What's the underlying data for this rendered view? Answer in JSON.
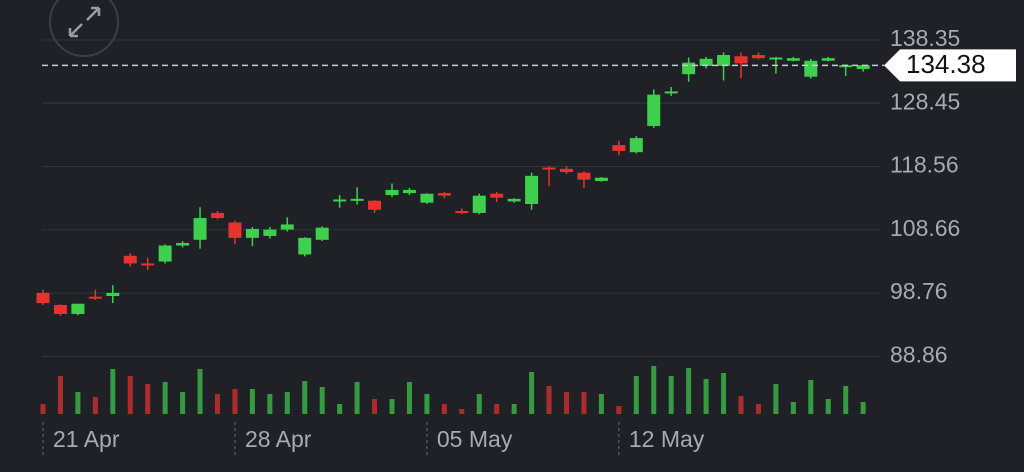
{
  "chart_data": {
    "type": "candlestick",
    "categories": [
      "21 Apr",
      null,
      null,
      null,
      null,
      null,
      null,
      null,
      null,
      null,
      null,
      "28 Apr",
      null,
      null,
      null,
      null,
      null,
      null,
      null,
      null,
      null,
      null,
      "05 May",
      null,
      null,
      null,
      null,
      null,
      null,
      null,
      null,
      null,
      null,
      "12 May",
      null,
      null,
      null,
      null,
      null,
      null,
      null,
      null,
      null,
      null,
      null,
      null,
      null,
      null
    ],
    "open": [
      98.8,
      96.9,
      95.5,
      98.2,
      98.3,
      104.6,
      103.4,
      103.7,
      106.2,
      107.1,
      111.3,
      109.8,
      107.4,
      107.7,
      108.7,
      104.8,
      107.1,
      113.3,
      113.4,
      113.2,
      114.1,
      114.4,
      112.9,
      114.4,
      111.6,
      111.3,
      114.3,
      113.1,
      112.7,
      118.4,
      118.2,
      117.6,
      116.3,
      121.9,
      120.8,
      124.9,
      130.2,
      133.0,
      134.3,
      134.3,
      135.8,
      136.0,
      135.5,
      135.1,
      132.6,
      135.1,
      134.4,
      133.8
    ],
    "high": [
      99.3,
      97.0,
      97.1,
      99.3,
      100.0,
      105.0,
      104.3,
      106.4,
      106.9,
      112.2,
      111.6,
      110.1,
      109.1,
      109.1,
      110.6,
      107.5,
      109.2,
      114.1,
      115.3,
      113.3,
      115.9,
      115.2,
      114.4,
      114.6,
      112.0,
      114.3,
      114.6,
      113.6,
      117.6,
      118.6,
      118.6,
      117.8,
      116.9,
      122.6,
      123.3,
      130.6,
      131.0,
      135.6,
      135.7,
      136.4,
      136.4,
      136.4,
      135.7,
      135.7,
      135.4,
      135.7,
      134.5,
      134.4
    ],
    "low": [
      96.9,
      95.2,
      95.3,
      97.7,
      97.2,
      102.9,
      102.4,
      103.4,
      105.9,
      105.7,
      110.3,
      106.4,
      106.1,
      107.3,
      108.4,
      104.5,
      106.9,
      112.1,
      112.6,
      111.3,
      113.8,
      114.1,
      112.7,
      113.6,
      111.1,
      111.1,
      113.0,
      112.9,
      111.8,
      115.5,
      117.4,
      115.2,
      116.2,
      120.3,
      120.6,
      124.6,
      129.6,
      131.8,
      133.9,
      132.0,
      132.4,
      135.3,
      133.1,
      135.0,
      132.3,
      135.0,
      132.7,
      133.4
    ],
    "close": [
      97.2,
      95.5,
      97.1,
      98.1,
      98.8,
      103.4,
      103.1,
      106.2,
      106.6,
      110.5,
      110.5,
      107.4,
      108.8,
      108.7,
      109.5,
      107.4,
      109.0,
      113.4,
      113.5,
      111.8,
      114.9,
      114.9,
      114.3,
      114.0,
      111.5,
      114.0,
      113.7,
      113.5,
      117.1,
      118.1,
      117.7,
      116.5,
      116.8,
      121.0,
      123.0,
      129.8,
      130.3,
      134.8,
      135.4,
      136.0,
      134.7,
      135.5,
      135.6,
      135.5,
      135.1,
      135.5,
      134.4,
      134.4
    ],
    "volume": [
      10,
      38,
      22,
      17,
      45,
      38,
      30,
      32,
      22,
      45,
      20,
      25,
      25,
      20,
      22,
      33,
      27,
      10,
      32,
      15,
      15,
      32,
      20,
      10,
      5,
      20,
      10,
      10,
      42,
      28,
      22,
      22,
      20,
      8,
      38,
      48,
      38,
      46,
      35,
      41,
      18,
      10,
      30,
      12,
      34,
      15,
      28,
      12
    ],
    "up_color": "#3ecf4c",
    "down_color": "#e8322e",
    "ylim": [
      82.2,
      144.6
    ],
    "yticks": [
      88.86,
      98.76,
      108.66,
      118.56,
      128.45,
      138.35
    ],
    "last_price": 134.38,
    "grid": true
  }
}
